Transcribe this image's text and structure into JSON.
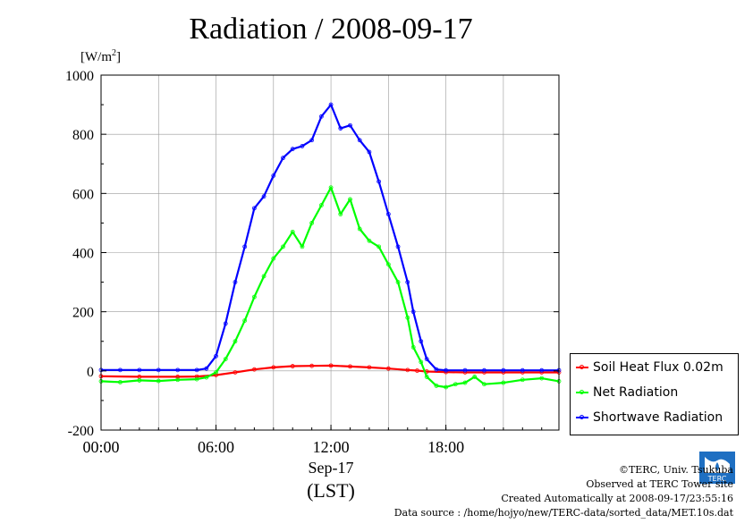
{
  "chart_data": {
    "type": "line",
    "title": "Radiation / 2008-09-17",
    "ylabel": "[W/m²]",
    "ylabel_base": "[W/m",
    "ylabel_sup": "2",
    "ylabel_close": "]",
    "xlabel_date": "Sep-17",
    "xlabel_tz": "(LST)",
    "xlim": [
      0,
      23.9
    ],
    "ylim": [
      -200,
      1000
    ],
    "yticks": [
      -200,
      0,
      200,
      400,
      600,
      800,
      1000
    ],
    "ytick_labels": [
      "-200",
      "0",
      "200",
      "400",
      "600",
      "800",
      "1000"
    ],
    "xticks": [
      0,
      6,
      12,
      18
    ],
    "xtick_labels": [
      "00:00",
      "06:00",
      "12:00",
      "18:00"
    ],
    "grid": true,
    "legend_position": "right, lower",
    "series": [
      {
        "name": "Soil Heat Flux 0.02m",
        "color": "#ff0000",
        "x": [
          0,
          2,
          4,
          5,
          6,
          7,
          8,
          9,
          10,
          11,
          12,
          13,
          14,
          15,
          16,
          16.5,
          17,
          18,
          19,
          20,
          21,
          22,
          23,
          23.9
        ],
        "y": [
          -18,
          -20,
          -20,
          -19,
          -14,
          -5,
          5,
          12,
          16,
          17,
          18,
          15,
          12,
          8,
          3,
          1,
          -2,
          -4,
          -5,
          -5,
          -5,
          -5,
          -5,
          -5
        ]
      },
      {
        "name": "Net Radiation",
        "color": "#00ff00",
        "x": [
          0,
          1,
          2,
          3,
          4,
          5,
          5.5,
          6,
          6.5,
          7,
          7.5,
          8,
          8.5,
          9,
          9.5,
          10,
          10.5,
          11,
          11.5,
          12,
          12.5,
          13,
          13.5,
          14,
          14.5,
          15,
          15.5,
          16,
          16.3,
          16.7,
          17,
          17.5,
          18,
          18.5,
          19,
          19.5,
          20,
          21,
          22,
          23,
          23.9
        ],
        "y": [
          -35,
          -38,
          -32,
          -34,
          -30,
          -28,
          -22,
          -5,
          40,
          100,
          170,
          250,
          320,
          380,
          420,
          470,
          420,
          500,
          560,
          620,
          530,
          580,
          480,
          440,
          420,
          360,
          300,
          180,
          80,
          30,
          -20,
          -50,
          -55,
          -45,
          -40,
          -20,
          -45,
          -40,
          -30,
          -25,
          -35
        ]
      },
      {
        "name": "Shortwave Radiation",
        "color": "#0000ff",
        "x": [
          0,
          1,
          2,
          3,
          4,
          5,
          5.5,
          6,
          6.5,
          7,
          7.5,
          8,
          8.5,
          9,
          9.5,
          10,
          10.5,
          11,
          11.5,
          12,
          12.5,
          13,
          13.5,
          14,
          14.5,
          15,
          15.5,
          16,
          16.3,
          16.7,
          17,
          17.5,
          18,
          19,
          20,
          21,
          22,
          23,
          23.9
        ],
        "y": [
          3,
          3,
          3,
          3,
          3,
          3,
          8,
          50,
          160,
          300,
          420,
          550,
          590,
          660,
          720,
          750,
          760,
          780,
          860,
          900,
          820,
          830,
          780,
          740,
          640,
          530,
          420,
          300,
          200,
          100,
          40,
          5,
          2,
          2,
          2,
          2,
          2,
          2,
          2
        ]
      }
    ]
  },
  "credits": {
    "copyright": "©TERC, Univ. Tsukuba",
    "site": "Observed at TERC Tower site",
    "created": "Created Automatically at 2008-09-17/23:55:16",
    "source": "Data source : /home/hojyo/new/TERC-data/sorted_data/MET.10s.dat"
  },
  "logo_text": "TERC"
}
